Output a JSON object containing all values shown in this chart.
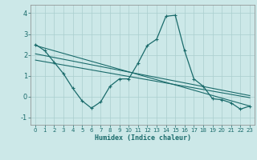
{
  "xlabel": "Humidex (Indice chaleur)",
  "bg_color": "#cce8e8",
  "grid_color": "#aacece",
  "line_color": "#1a6b6b",
  "xlim": [
    -0.5,
    23.5
  ],
  "ylim": [
    -1.35,
    4.4
  ],
  "x_ticks": [
    0,
    1,
    2,
    3,
    4,
    5,
    6,
    7,
    8,
    9,
    10,
    11,
    12,
    13,
    14,
    15,
    16,
    17,
    18,
    19,
    20,
    21,
    22,
    23
  ],
  "y_ticks": [
    -1,
    0,
    1,
    2,
    3,
    4
  ],
  "curve1_x": [
    0,
    1,
    2,
    3,
    4,
    5,
    6,
    7,
    8,
    9,
    10,
    11,
    12,
    13,
    14,
    15,
    16,
    17,
    18,
    19,
    20,
    21,
    22,
    23
  ],
  "curve1_y": [
    2.5,
    2.2,
    1.65,
    1.1,
    0.4,
    -0.2,
    -0.55,
    -0.25,
    0.5,
    0.85,
    0.85,
    1.6,
    2.45,
    2.75,
    3.85,
    3.9,
    2.2,
    0.85,
    0.5,
    -0.1,
    -0.15,
    -0.3,
    -0.6,
    -0.45
  ],
  "line1_x": [
    0,
    23
  ],
  "line1_y": [
    2.45,
    -0.45
  ],
  "line2_x": [
    0,
    23
  ],
  "line2_y": [
    2.05,
    0.05
  ],
  "line3_x": [
    0,
    23
  ],
  "line3_y": [
    1.75,
    -0.05
  ]
}
